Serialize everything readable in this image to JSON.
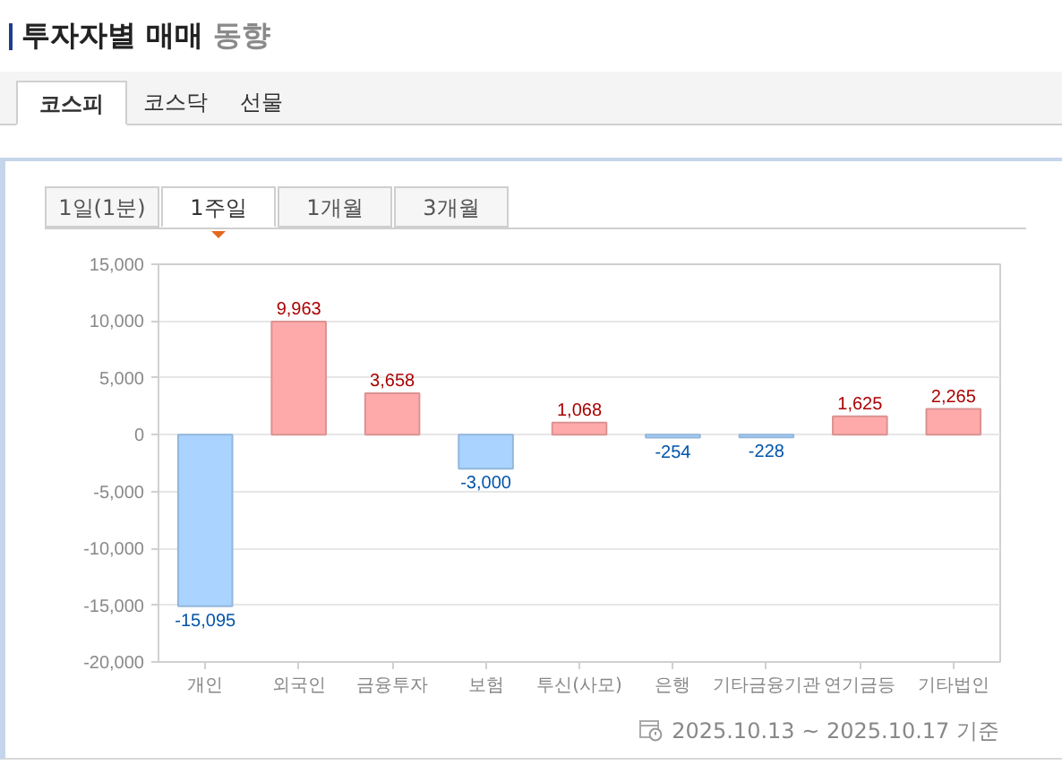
{
  "chart_data": {
    "type": "bar",
    "title": "투자자별 매매 동향",
    "categories": [
      "개인",
      "외국인",
      "금융투자",
      "보험",
      "투신(사모)",
      "은행",
      "기타금융기관",
      "연기금등",
      "기타법인"
    ],
    "values": [
      -15095,
      9963,
      3658,
      -3000,
      1068,
      -254,
      -228,
      1625,
      2265
    ],
    "colors": [
      "#aad4ff",
      "#ffaaaa",
      "#ffaaaa",
      "#aad4ff",
      "#ffaaaa",
      "#aad4ff",
      "#aad4ff",
      "#ffaaaa",
      "#ffaaaa"
    ],
    "value_labels": [
      "-15,095",
      "9,963",
      "3,658",
      "-3,000",
      "1,068",
      "-254",
      "-228",
      "1,625",
      "2,265"
    ],
    "ylim": [
      -20000,
      15000
    ],
    "yticks": [
      {
        "value": -20000,
        "label": "-20,000"
      },
      {
        "value": -15000,
        "label": "-15,000"
      },
      {
        "value": -10000,
        "label": "-10,000"
      },
      {
        "value": -5000,
        "label": "-5,000"
      },
      0,
      {
        "value": 5000,
        "label": "5,000"
      },
      {
        "value": 10000,
        "label": "10,000"
      },
      {
        "value": 15000,
        "label": "15,000"
      }
    ],
    "grid": "y",
    "annotations": [
      "코스피",
      "코스닥",
      "선물",
      "1일(1분)",
      "1주일",
      "1개월",
      "3개월",
      "2025.10.13 ~ 2025.10.17 기준"
    ]
  }
}
